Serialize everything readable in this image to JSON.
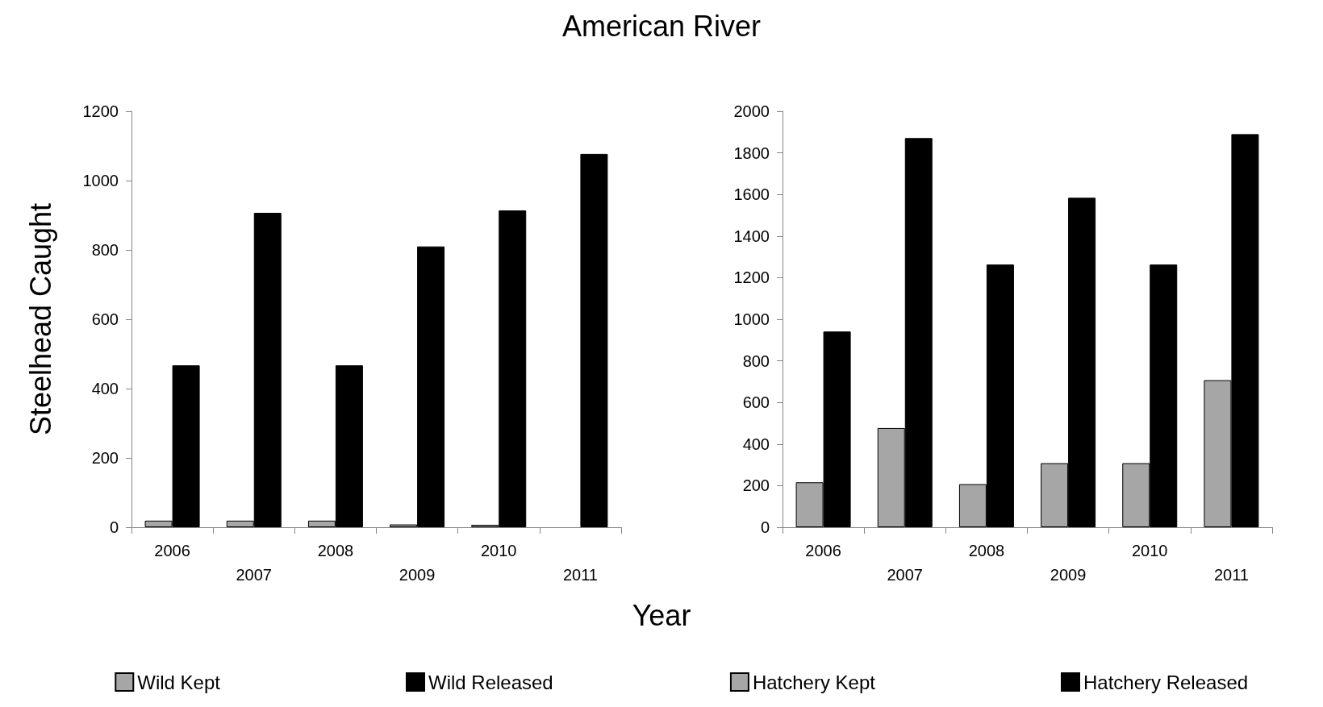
{
  "chart_data": [
    {
      "type": "bar",
      "title": "American River",
      "xlabel": "Year",
      "ylabel": "Steelhead Caught",
      "categories": [
        "2006",
        "2007",
        "2008",
        "2009",
        "2010",
        "2011"
      ],
      "ylim": [
        0,
        1200
      ],
      "yticks": [
        0,
        200,
        400,
        600,
        800,
        1000,
        1200
      ],
      "grid": false,
      "legend": "bottom",
      "series": [
        {
          "name": "Wild Kept",
          "color": "#a6a6a6",
          "values": [
            19,
            19,
            19,
            8,
            7,
            0
          ]
        },
        {
          "name": "Wild Released",
          "color": "#000000",
          "values": [
            467,
            907,
            467,
            810,
            914,
            1077
          ]
        }
      ]
    },
    {
      "type": "bar",
      "categories": [
        "2006",
        "2007",
        "2008",
        "2009",
        "2010",
        "2011"
      ],
      "ylim": [
        0,
        2000
      ],
      "yticks": [
        0,
        200,
        400,
        600,
        800,
        1000,
        1200,
        1400,
        1600,
        1800,
        2000
      ],
      "grid": false,
      "legend": "bottom",
      "series": [
        {
          "name": "Hatchery Kept",
          "color": "#a6a6a6",
          "values": [
            216,
            477,
            207,
            308,
            308,
            707
          ]
        },
        {
          "name": "Hatchery Released",
          "color": "#000000",
          "values": [
            941,
            1871,
            1263,
            1584,
            1263,
            1890
          ]
        }
      ]
    }
  ]
}
